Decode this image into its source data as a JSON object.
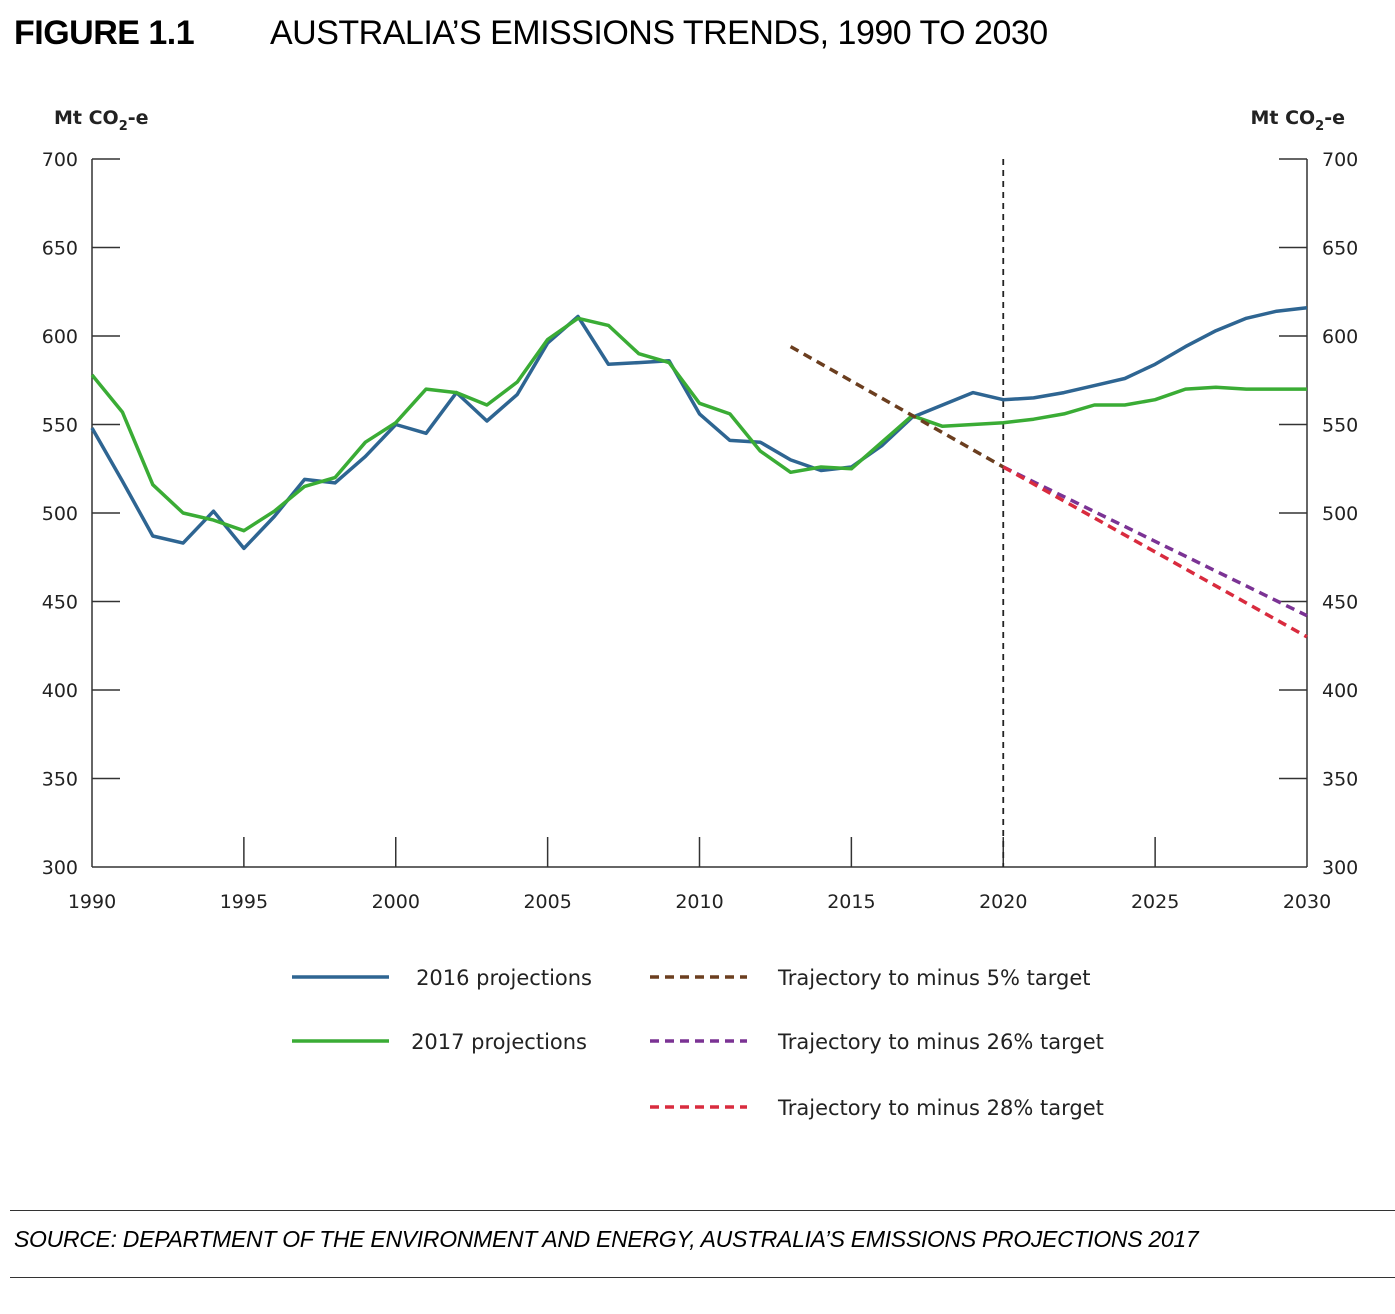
{
  "figure": {
    "number": "FIGURE 1.1",
    "title": "AUSTRALIA’S EMISSIONS TRENDS, 1990 TO 2030",
    "source": "SOURCE: DEPARTMENT OF THE ENVIRONMENT AND ENERGY, AUSTRALIA’S EMISSIONS PROJECTIONS 2017"
  },
  "chart_data": {
    "type": "line",
    "title": "AUSTRALIA’S EMISSIONS TRENDS, 1990 TO 2030",
    "ylabel_left": "Mt CO2-e",
    "ylabel_right": "Mt CO2-e",
    "xlim": [
      1990,
      2030
    ],
    "ylim": [
      300,
      700
    ],
    "x_ticks": [
      1990,
      1995,
      2000,
      2005,
      2010,
      2015,
      2020,
      2025,
      2030
    ],
    "y_ticks": [
      300,
      350,
      400,
      450,
      500,
      550,
      600,
      650,
      700
    ],
    "reference_line": {
      "x": 2020,
      "style": "dashed",
      "color": "#222222"
    },
    "legend_position": "bottom",
    "series": [
      {
        "name": "2016 projections",
        "style": "solid",
        "color": "#2e6592",
        "points": [
          [
            1990,
            548
          ],
          [
            1991,
            518
          ],
          [
            1992,
            487
          ],
          [
            1993,
            483
          ],
          [
            1994,
            501
          ],
          [
            1995,
            480
          ],
          [
            1996,
            498
          ],
          [
            1997,
            519
          ],
          [
            1998,
            517
          ],
          [
            1999,
            532
          ],
          [
            2000,
            550
          ],
          [
            2001,
            545
          ],
          [
            2002,
            568
          ],
          [
            2003,
            552
          ],
          [
            2004,
            567
          ],
          [
            2005,
            596
          ],
          [
            2006,
            611
          ],
          [
            2007,
            584
          ],
          [
            2008,
            585
          ],
          [
            2009,
            586
          ],
          [
            2010,
            556
          ],
          [
            2011,
            541
          ],
          [
            2012,
            540
          ],
          [
            2013,
            530
          ],
          [
            2014,
            524
          ],
          [
            2015,
            526
          ],
          [
            2016,
            538
          ],
          [
            2017,
            554
          ],
          [
            2018,
            561
          ],
          [
            2019,
            568
          ],
          [
            2020,
            564
          ],
          [
            2021,
            565
          ],
          [
            2022,
            568
          ],
          [
            2023,
            572
          ],
          [
            2024,
            576
          ],
          [
            2025,
            584
          ],
          [
            2026,
            594
          ],
          [
            2027,
            603
          ],
          [
            2028,
            610
          ],
          [
            2029,
            614
          ],
          [
            2030,
            616
          ]
        ]
      },
      {
        "name": "2017 projections",
        "style": "solid",
        "color": "#3aac35",
        "points": [
          [
            1990,
            578
          ],
          [
            1991,
            557
          ],
          [
            1992,
            516
          ],
          [
            1993,
            500
          ],
          [
            1994,
            496
          ],
          [
            1995,
            490
          ],
          [
            1996,
            501
          ],
          [
            1997,
            515
          ],
          [
            1998,
            520
          ],
          [
            1999,
            540
          ],
          [
            2000,
            551
          ],
          [
            2001,
            570
          ],
          [
            2002,
            568
          ],
          [
            2003,
            561
          ],
          [
            2004,
            574
          ],
          [
            2005,
            598
          ],
          [
            2006,
            610
          ],
          [
            2007,
            606
          ],
          [
            2008,
            590
          ],
          [
            2009,
            585
          ],
          [
            2010,
            562
          ],
          [
            2011,
            556
          ],
          [
            2012,
            535
          ],
          [
            2013,
            523
          ],
          [
            2014,
            526
          ],
          [
            2015,
            525
          ],
          [
            2016,
            540
          ],
          [
            2017,
            555
          ],
          [
            2018,
            549
          ],
          [
            2019,
            550
          ],
          [
            2020,
            551
          ],
          [
            2021,
            553
          ],
          [
            2022,
            556
          ],
          [
            2023,
            561
          ],
          [
            2024,
            561
          ],
          [
            2025,
            564
          ],
          [
            2026,
            570
          ],
          [
            2027,
            571
          ],
          [
            2028,
            570
          ],
          [
            2029,
            570
          ],
          [
            2030,
            570
          ]
        ]
      },
      {
        "name": "Trajectory to minus 5% target",
        "style": "dashed",
        "color": "#6b3e1f",
        "points": [
          [
            2013,
            594
          ],
          [
            2020,
            526
          ]
        ]
      },
      {
        "name": "Trajectory to minus 26% target",
        "style": "dashed",
        "color": "#7b3394",
        "points": [
          [
            2020,
            526
          ],
          [
            2030,
            442
          ]
        ]
      },
      {
        "name": "Trajectory to minus 28% target",
        "style": "dashed",
        "color": "#d92b3e",
        "points": [
          [
            2020,
            526
          ],
          [
            2030,
            430
          ]
        ]
      }
    ]
  }
}
